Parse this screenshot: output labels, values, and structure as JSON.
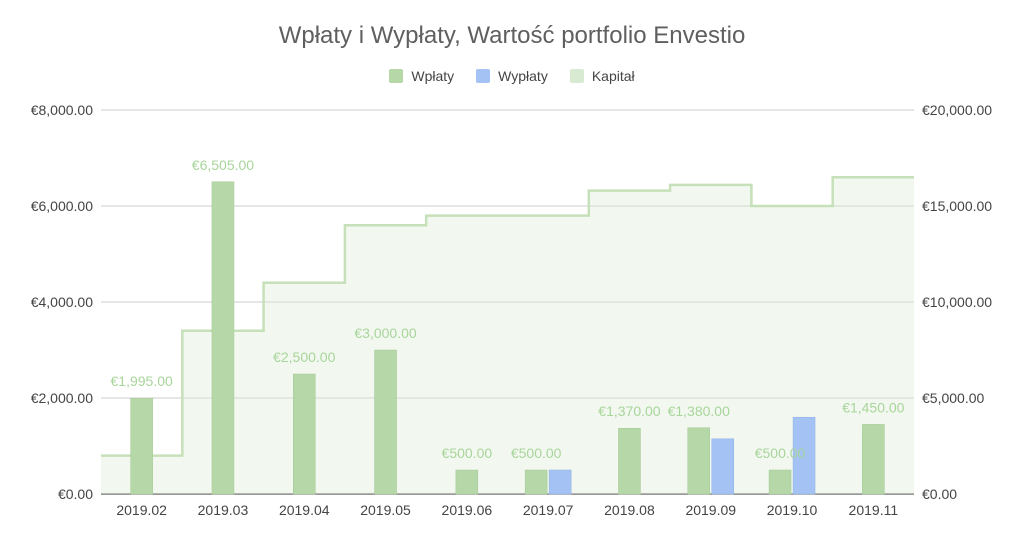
{
  "chart_data": {
    "type": "bar",
    "title": "Wpłaty i Wypłaty, Wartość portfolio  Envestio",
    "categories": [
      "2019.02",
      "2019.03",
      "2019.04",
      "2019.05",
      "2019.06",
      "2019.07",
      "2019.08",
      "2019.09",
      "2019.10",
      "2019.11"
    ],
    "series": [
      {
        "name": "Wpłaty",
        "axis": "left",
        "color": "#b6d7a8",
        "values": [
          1995,
          6505,
          2500,
          3000,
          500,
          500,
          1370,
          1380,
          500,
          1450
        ],
        "labels": [
          "€1,995.00",
          "€6,505.00",
          "€2,500.00",
          "€3,000.00",
          "€500.00",
          "€500.00",
          "€1,370.00",
          "€1,380.00",
          "€500.00",
          "€1,450.00"
        ]
      },
      {
        "name": "Wypłaty",
        "axis": "left",
        "color": "#a4c2f4",
        "values": [
          0,
          0,
          0,
          0,
          0,
          500,
          0,
          1150,
          1600,
          0
        ]
      },
      {
        "name": "Kapitał",
        "axis": "right",
        "type": "stepped-area",
        "color": "#d9ead3",
        "line_color": "#c6e0b9",
        "values": [
          2000,
          8500,
          11000,
          14000,
          14500,
          14500,
          15800,
          16100,
          15000,
          16500
        ]
      }
    ],
    "y_left": {
      "ylim": [
        0,
        8000
      ],
      "ticks": [
        0,
        2000,
        4000,
        6000,
        8000
      ],
      "tick_labels": [
        "€0.00",
        "€2,000.00",
        "€4,000.00",
        "€6,000.00",
        "€8,000.00"
      ]
    },
    "y_right": {
      "ylim": [
        0,
        20000
      ],
      "ticks": [
        0,
        5000,
        10000,
        15000,
        20000
      ],
      "tick_labels": [
        "€0.00",
        "€5,000.00",
        "€10,000.00",
        "€15,000.00",
        "€20,000.00"
      ]
    },
    "grid": true,
    "legend_position": "top-center",
    "label_color": "#a8d59a"
  }
}
